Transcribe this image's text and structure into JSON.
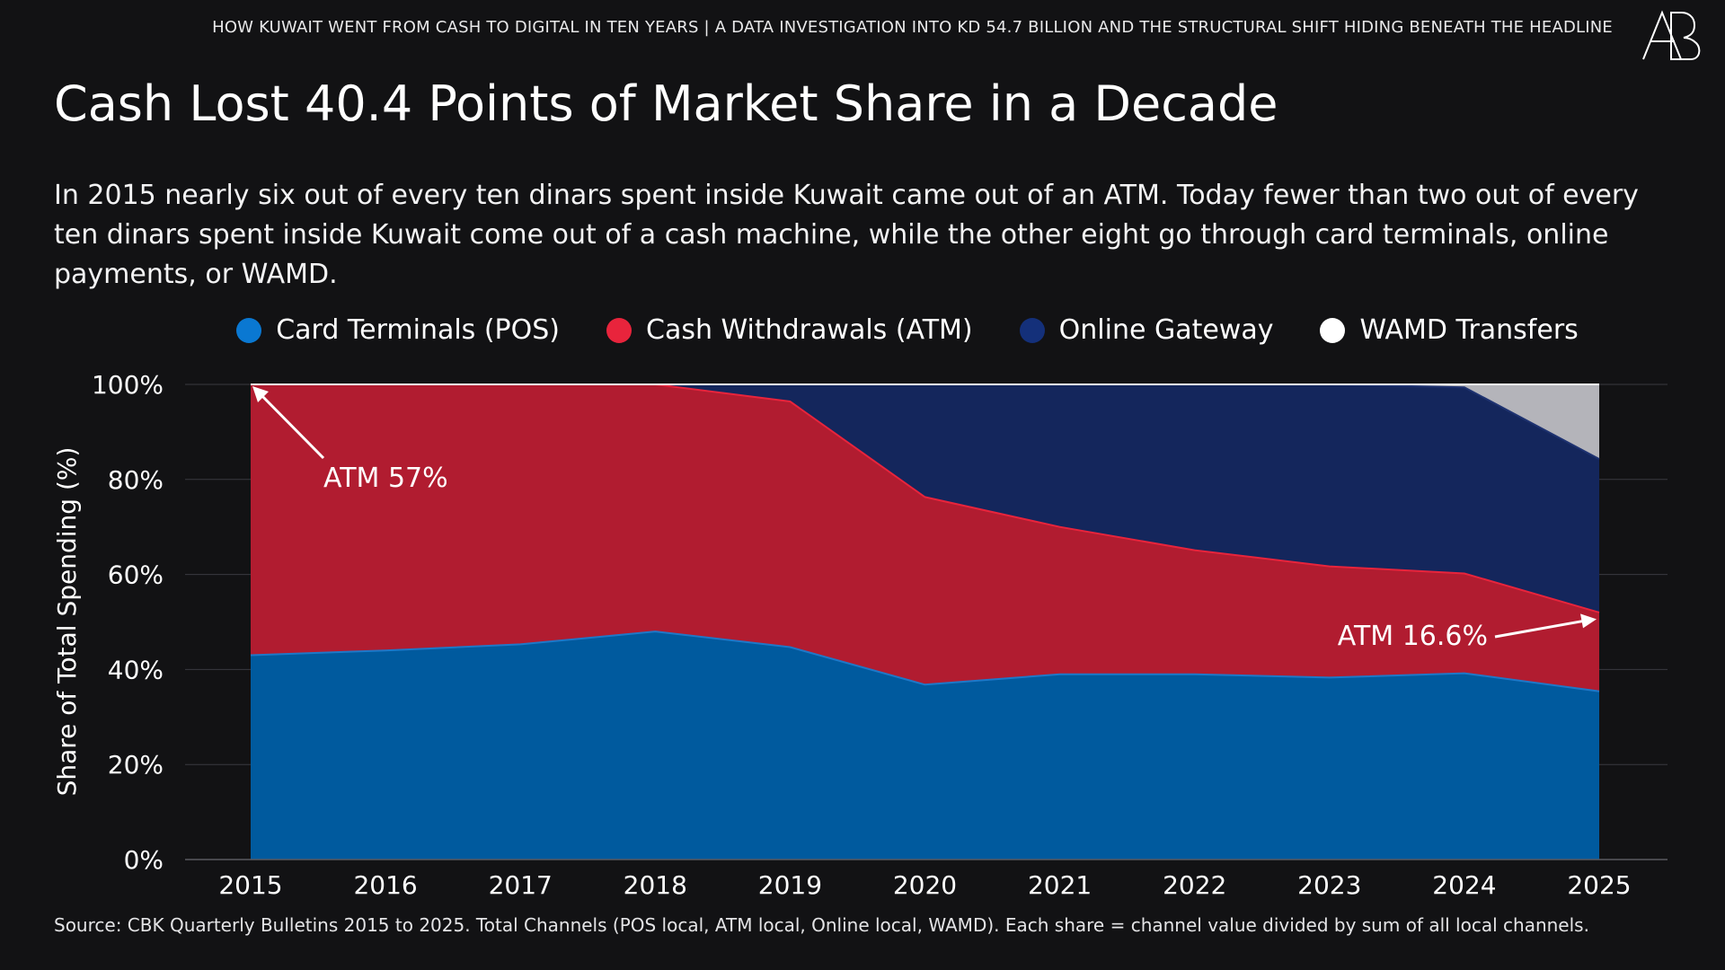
{
  "kicker": "HOW KUWAIT WENT FROM CASH TO DIGITAL IN TEN YEARS | A DATA INVESTIGATION INTO KD 54.7 BILLION AND THE STRUCTURAL SHIFT HIDING BENEATH THE HEADLINE",
  "logo_text": "AB",
  "title": "Cash Lost 40.4 Points of Market Share in a Decade",
  "subtitle": "In 2015 nearly six out of every ten dinars spent inside Kuwait came out of an ATM. Today fewer than two out of every ten dinars spent inside Kuwait come out of a cash machine, while the other eight go through card terminals, online payments, or WAMD.",
  "source": "Source: CBK Quarterly Bulletins 2015 to 2025. Total Channels (POS local, ATM local, Online local, WAMD). Each share = channel value divided by sum of all local channels.",
  "colors": {
    "background": "#121214",
    "pos": "#005a9e",
    "pos_line": "#1e78c8",
    "pos_legend": "#0a78d2",
    "atm": "#b11c30",
    "atm_line": "#e8243c",
    "atm_legend": "#e8243c",
    "online": "#14265c",
    "online_line": "#1e3270",
    "online_legend": "#14307a",
    "wamd": "#b4b4ba",
    "wamd_line": "#ffffff",
    "wamd_legend": "#ffffff",
    "grid": "#3a3a40",
    "axis_text": "#ffffff"
  },
  "chart_data": {
    "type": "area",
    "stacked": true,
    "x": [
      2015,
      2016,
      2017,
      2018,
      2019,
      2020,
      2021,
      2022,
      2023,
      2024,
      2025
    ],
    "xlabels": [
      "2015",
      "2016",
      "2017",
      "2018",
      "2019",
      "2020",
      "2021",
      "2022",
      "2023",
      "2024",
      "2025"
    ],
    "ylabel": "Share of Total Spending (%)",
    "ylim": [
      0,
      100
    ],
    "yticks": [
      0,
      20,
      40,
      60,
      80,
      100
    ],
    "yticklabels": [
      "0%",
      "20%",
      "40%",
      "60%",
      "80%",
      "100%"
    ],
    "grid": true,
    "legend_position": "top",
    "series": [
      {
        "key": "pos",
        "name": "Card Terminals (POS)",
        "values": [
          43.0,
          44.0,
          45.3,
          48.0,
          44.7,
          36.8,
          39.0,
          39.0,
          38.3,
          39.2,
          35.4
        ]
      },
      {
        "key": "atm",
        "name": "Cash Withdrawals (ATM)",
        "values": [
          57.0,
          56.0,
          54.7,
          52.0,
          51.7,
          39.5,
          31.0,
          26.1,
          23.4,
          21.0,
          16.6
        ]
      },
      {
        "key": "online",
        "name": "Online Gateway",
        "values": [
          0.0,
          0.0,
          0.0,
          0.0,
          3.6,
          23.7,
          30.0,
          34.9,
          38.3,
          39.2,
          32.3
        ]
      },
      {
        "key": "wamd",
        "name": "WAMD Transfers",
        "values": [
          0.0,
          0.0,
          0.0,
          0.0,
          0.0,
          0.0,
          0.0,
          0.0,
          0.0,
          0.6,
          15.7
        ]
      }
    ],
    "annotations": [
      {
        "text": "ATM 57%",
        "x": 2015,
        "y": 100
      },
      {
        "text": "ATM 16.6%",
        "x": 2025,
        "y": 50.6
      }
    ]
  }
}
